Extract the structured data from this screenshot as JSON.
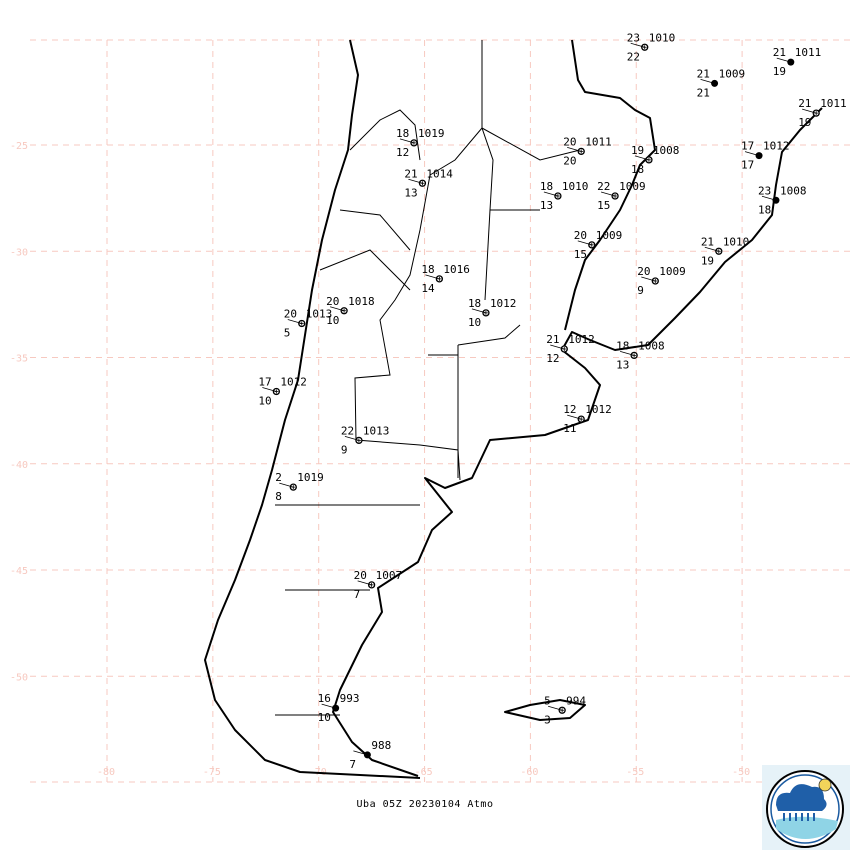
{
  "caption": "Uba 05Z 20230104 Atmo",
  "grid": {
    "lat_labels": [
      "-25",
      "-30",
      "-35",
      "-40",
      "-45",
      "-50"
    ],
    "lon_labels": [
      "-80",
      "-75",
      "-70",
      "-65",
      "-60",
      "-55",
      "-50"
    ],
    "color": "#f7c9c0"
  },
  "stations": [
    {
      "lon": -54.6,
      "lat": -20.4,
      "temp": "23",
      "pres": "1010",
      "dew": "22",
      "filled": false
    },
    {
      "lon": -47.7,
      "lat": -21.1,
      "temp": "21",
      "pres": "1011",
      "dew": "19",
      "filled": true
    },
    {
      "lon": -51.3,
      "lat": -22.1,
      "temp": "21",
      "pres": "1009",
      "dew": "21",
      "filled": true
    },
    {
      "lon": -46.5,
      "lat": -23.5,
      "temp": "21",
      "pres": "1011",
      "dew": "19",
      "filled": false
    },
    {
      "lon": -65.5,
      "lat": -24.9,
      "temp": "18",
      "pres": "1019",
      "dew": "12",
      "filled": false
    },
    {
      "lon": -57.6,
      "lat": -25.3,
      "temp": "20",
      "pres": "1011",
      "dew": "20",
      "filled": false
    },
    {
      "lon": -54.4,
      "lat": -25.7,
      "temp": "19",
      "pres": "1008",
      "dew": "18",
      "filled": false
    },
    {
      "lon": -49.2,
      "lat": -25.5,
      "temp": "17",
      "pres": "1012",
      "dew": "17",
      "filled": true
    },
    {
      "lon": -65.1,
      "lat": -26.8,
      "temp": "21",
      "pres": "1014",
      "dew": "13",
      "filled": false
    },
    {
      "lon": -58.7,
      "lat": -27.4,
      "temp": "18",
      "pres": "1010",
      "dew": "13",
      "filled": false
    },
    {
      "lon": -56.0,
      "lat": -27.4,
      "temp": "22",
      "pres": "1009",
      "dew": "15",
      "filled": false
    },
    {
      "lon": -48.4,
      "lat": -27.6,
      "temp": "23",
      "pres": "1008",
      "dew": "18",
      "filled": true
    },
    {
      "lon": -57.1,
      "lat": -29.7,
      "temp": "20",
      "pres": "1009",
      "dew": "15",
      "filled": false
    },
    {
      "lon": -51.1,
      "lat": -30.0,
      "temp": "21",
      "pres": "1010",
      "dew": "19",
      "filled": false
    },
    {
      "lon": -64.3,
      "lat": -31.3,
      "temp": "18",
      "pres": "1016",
      "dew": "14",
      "filled": false
    },
    {
      "lon": -54.1,
      "lat": -31.4,
      "temp": "20",
      "pres": "1009",
      "dew": "9",
      "filled": false
    },
    {
      "lon": -68.8,
      "lat": -32.8,
      "temp": "20",
      "pres": "1018",
      "dew": "10",
      "filled": false
    },
    {
      "lon": -70.8,
      "lat": -33.4,
      "temp": "20",
      "pres": "1013",
      "dew": "5",
      "filled": false
    },
    {
      "lon": -62.1,
      "lat": -32.9,
      "temp": "18",
      "pres": "1012",
      "dew": "10",
      "filled": false
    },
    {
      "lon": -58.4,
      "lat": -34.6,
      "temp": "21",
      "pres": "1012",
      "dew": "12",
      "filled": false
    },
    {
      "lon": -55.1,
      "lat": -34.9,
      "temp": "18",
      "pres": "1008",
      "dew": "13",
      "filled": false
    },
    {
      "lon": -72.0,
      "lat": -36.6,
      "temp": "17",
      "pres": "1012",
      "dew": "10",
      "filled": false
    },
    {
      "lon": -57.6,
      "lat": -37.9,
      "temp": "12",
      "pres": "1012",
      "dew": "11",
      "filled": false
    },
    {
      "lon": -68.1,
      "lat": -38.9,
      "temp": "22",
      "pres": "1013",
      "dew": "9",
      "filled": false
    },
    {
      "lon": -71.2,
      "lat": -41.1,
      "temp": "2",
      "pres": "1019",
      "dew": "8",
      "filled": false
    },
    {
      "lon": -67.5,
      "lat": -45.7,
      "temp": "20",
      "pres": "1007",
      "dew": "7",
      "filled": false
    },
    {
      "lon": -69.2,
      "lat": -51.5,
      "temp": "16",
      "pres": "993",
      "dew": "10",
      "filled": true
    },
    {
      "lon": -58.5,
      "lat": -51.6,
      "temp": "5",
      "pres": "994",
      "dew": "3",
      "filled": false
    },
    {
      "lon": -67.7,
      "lat": -53.7,
      "temp": "",
      "pres": "988",
      "dew": "7",
      "filled": true
    }
  ]
}
